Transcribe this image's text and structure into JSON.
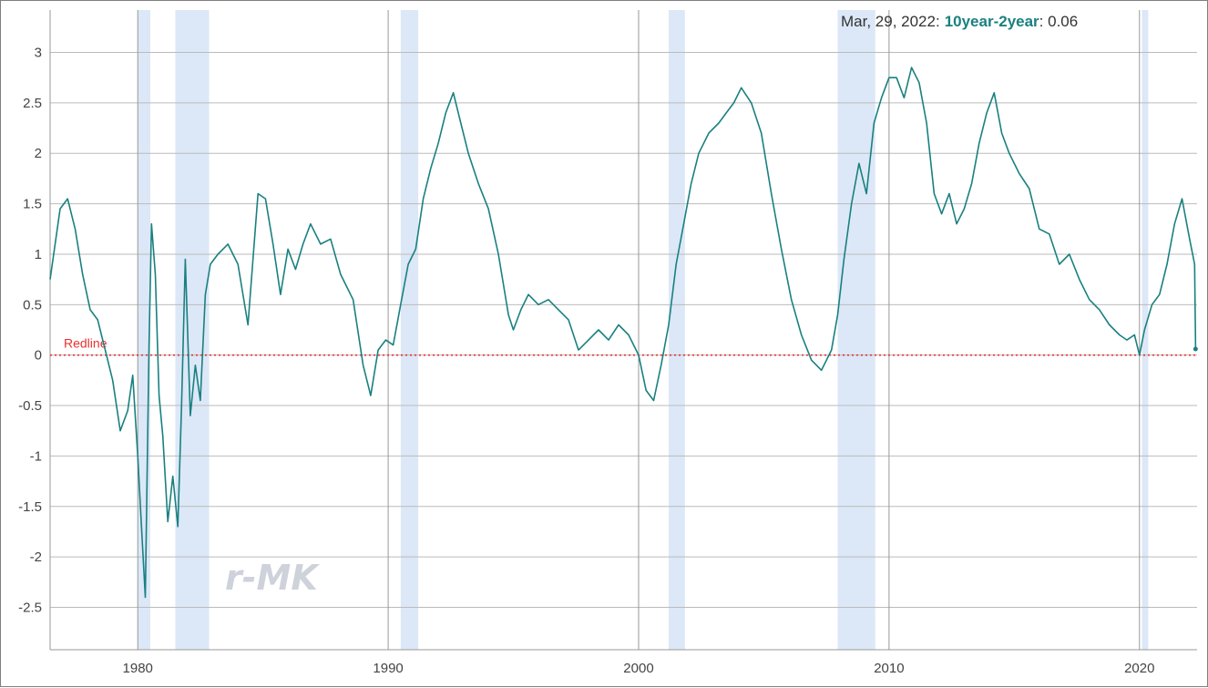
{
  "chart_data": {
    "type": "line",
    "title": "",
    "xlabel": "",
    "ylabel": "",
    "xlim": [
      1976.5,
      2022.3
    ],
    "ylim": [
      -2.92,
      3.42
    ],
    "x_ticks": [
      1980,
      1990,
      2000,
      2010,
      2020
    ],
    "y_ticks": [
      3,
      2.5,
      2,
      1.5,
      1,
      0.5,
      0,
      -0.5,
      -1,
      -1.5,
      -2,
      -2.5
    ],
    "grid": true,
    "colors": {
      "line": "#1a8080",
      "recession": "#dce8f7",
      "redline": "#e8312f",
      "grid": "#bbbbbb"
    },
    "redline": {
      "value": 0,
      "label": "Redline"
    },
    "recessions": [
      [
        1980.0,
        1980.5
      ],
      [
        1981.5,
        1982.85
      ],
      [
        1990.5,
        1991.2
      ],
      [
        2001.2,
        2001.85
      ],
      [
        2007.95,
        2009.45
      ],
      [
        2020.1,
        2020.35
      ]
    ],
    "tooltip": {
      "date": "Mar, 29, 2022:",
      "series": "10year-2year",
      "value": ": 0.06"
    },
    "watermark": "r-MK",
    "series": [
      {
        "name": "10year-2year",
        "x": [
          1976.5,
          1976.9,
          1977.2,
          1977.5,
          1977.8,
          1978.1,
          1978.4,
          1978.7,
          1979.0,
          1979.3,
          1979.6,
          1979.8,
          1980.0,
          1980.15,
          1980.3,
          1980.45,
          1980.55,
          1980.7,
          1980.85,
          1981.0,
          1981.2,
          1981.4,
          1981.6,
          1981.75,
          1981.9,
          1982.1,
          1982.3,
          1982.5,
          1982.7,
          1982.9,
          1983.2,
          1983.6,
          1984.0,
          1984.4,
          1984.8,
          1985.1,
          1985.4,
          1985.7,
          1986.0,
          1986.3,
          1986.6,
          1986.9,
          1987.3,
          1987.7,
          1988.1,
          1988.6,
          1989.0,
          1989.3,
          1989.6,
          1989.9,
          1990.2,
          1990.5,
          1990.8,
          1991.1,
          1991.4,
          1991.7,
          1992.0,
          1992.3,
          1992.6,
          1992.9,
          1993.2,
          1993.6,
          1994.0,
          1994.4,
          1994.8,
          1995.0,
          1995.3,
          1995.6,
          1996.0,
          1996.4,
          1996.8,
          1997.2,
          1997.6,
          1998.0,
          1998.4,
          1998.8,
          1999.2,
          1999.6,
          2000.0,
          2000.3,
          2000.6,
          2000.9,
          2001.2,
          2001.5,
          2001.8,
          2002.1,
          2002.4,
          2002.8,
          2003.2,
          2003.5,
          2003.8,
          2004.1,
          2004.5,
          2004.9,
          2005.3,
          2005.7,
          2006.1,
          2006.5,
          2006.9,
          2007.3,
          2007.7,
          2007.95,
          2008.2,
          2008.5,
          2008.8,
          2009.1,
          2009.4,
          2009.7,
          2010.0,
          2010.3,
          2010.6,
          2010.9,
          2011.2,
          2011.5,
          2011.8,
          2012.1,
          2012.4,
          2012.7,
          2013.0,
          2013.3,
          2013.6,
          2013.9,
          2014.2,
          2014.5,
          2014.8,
          2015.2,
          2015.6,
          2016.0,
          2016.4,
          2016.8,
          2017.2,
          2017.6,
          2018.0,
          2018.4,
          2018.8,
          2019.2,
          2019.5,
          2019.8,
          2020.0,
          2020.2,
          2020.5,
          2020.8,
          2021.1,
          2021.4,
          2021.7,
          2022.0,
          2022.2,
          2022.24
        ],
        "values": [
          0.75,
          1.45,
          1.55,
          1.25,
          0.8,
          0.45,
          0.35,
          0.05,
          -0.25,
          -0.75,
          -0.55,
          -0.2,
          -1.0,
          -1.7,
          -2.4,
          0.1,
          1.3,
          0.8,
          -0.4,
          -0.8,
          -1.65,
          -1.2,
          -1.7,
          -0.5,
          0.95,
          -0.6,
          -0.1,
          -0.45,
          0.6,
          0.9,
          1.0,
          1.1,
          0.9,
          0.3,
          1.6,
          1.55,
          1.1,
          0.6,
          1.05,
          0.85,
          1.1,
          1.3,
          1.1,
          1.15,
          0.8,
          0.55,
          -0.1,
          -0.4,
          0.05,
          0.15,
          0.1,
          0.5,
          0.9,
          1.05,
          1.55,
          1.85,
          2.1,
          2.4,
          2.6,
          2.3,
          2.0,
          1.7,
          1.45,
          1.0,
          0.4,
          0.25,
          0.45,
          0.6,
          0.5,
          0.55,
          0.45,
          0.35,
          0.05,
          0.15,
          0.25,
          0.15,
          0.3,
          0.2,
          0.0,
          -0.35,
          -0.45,
          -0.1,
          0.3,
          0.9,
          1.3,
          1.7,
          2.0,
          2.2,
          2.3,
          2.4,
          2.5,
          2.65,
          2.5,
          2.2,
          1.6,
          1.05,
          0.55,
          0.2,
          -0.05,
          -0.15,
          0.05,
          0.4,
          0.95,
          1.5,
          1.9,
          1.6,
          2.3,
          2.55,
          2.75,
          2.75,
          2.55,
          2.85,
          2.7,
          2.3,
          1.6,
          1.4,
          1.6,
          1.3,
          1.45,
          1.7,
          2.1,
          2.4,
          2.6,
          2.2,
          2.0,
          1.8,
          1.65,
          1.25,
          1.2,
          0.9,
          1.0,
          0.75,
          0.55,
          0.45,
          0.3,
          0.2,
          0.15,
          0.2,
          0.0,
          0.25,
          0.5,
          0.6,
          0.9,
          1.3,
          1.55,
          1.15,
          0.9,
          0.06
        ]
      }
    ]
  }
}
